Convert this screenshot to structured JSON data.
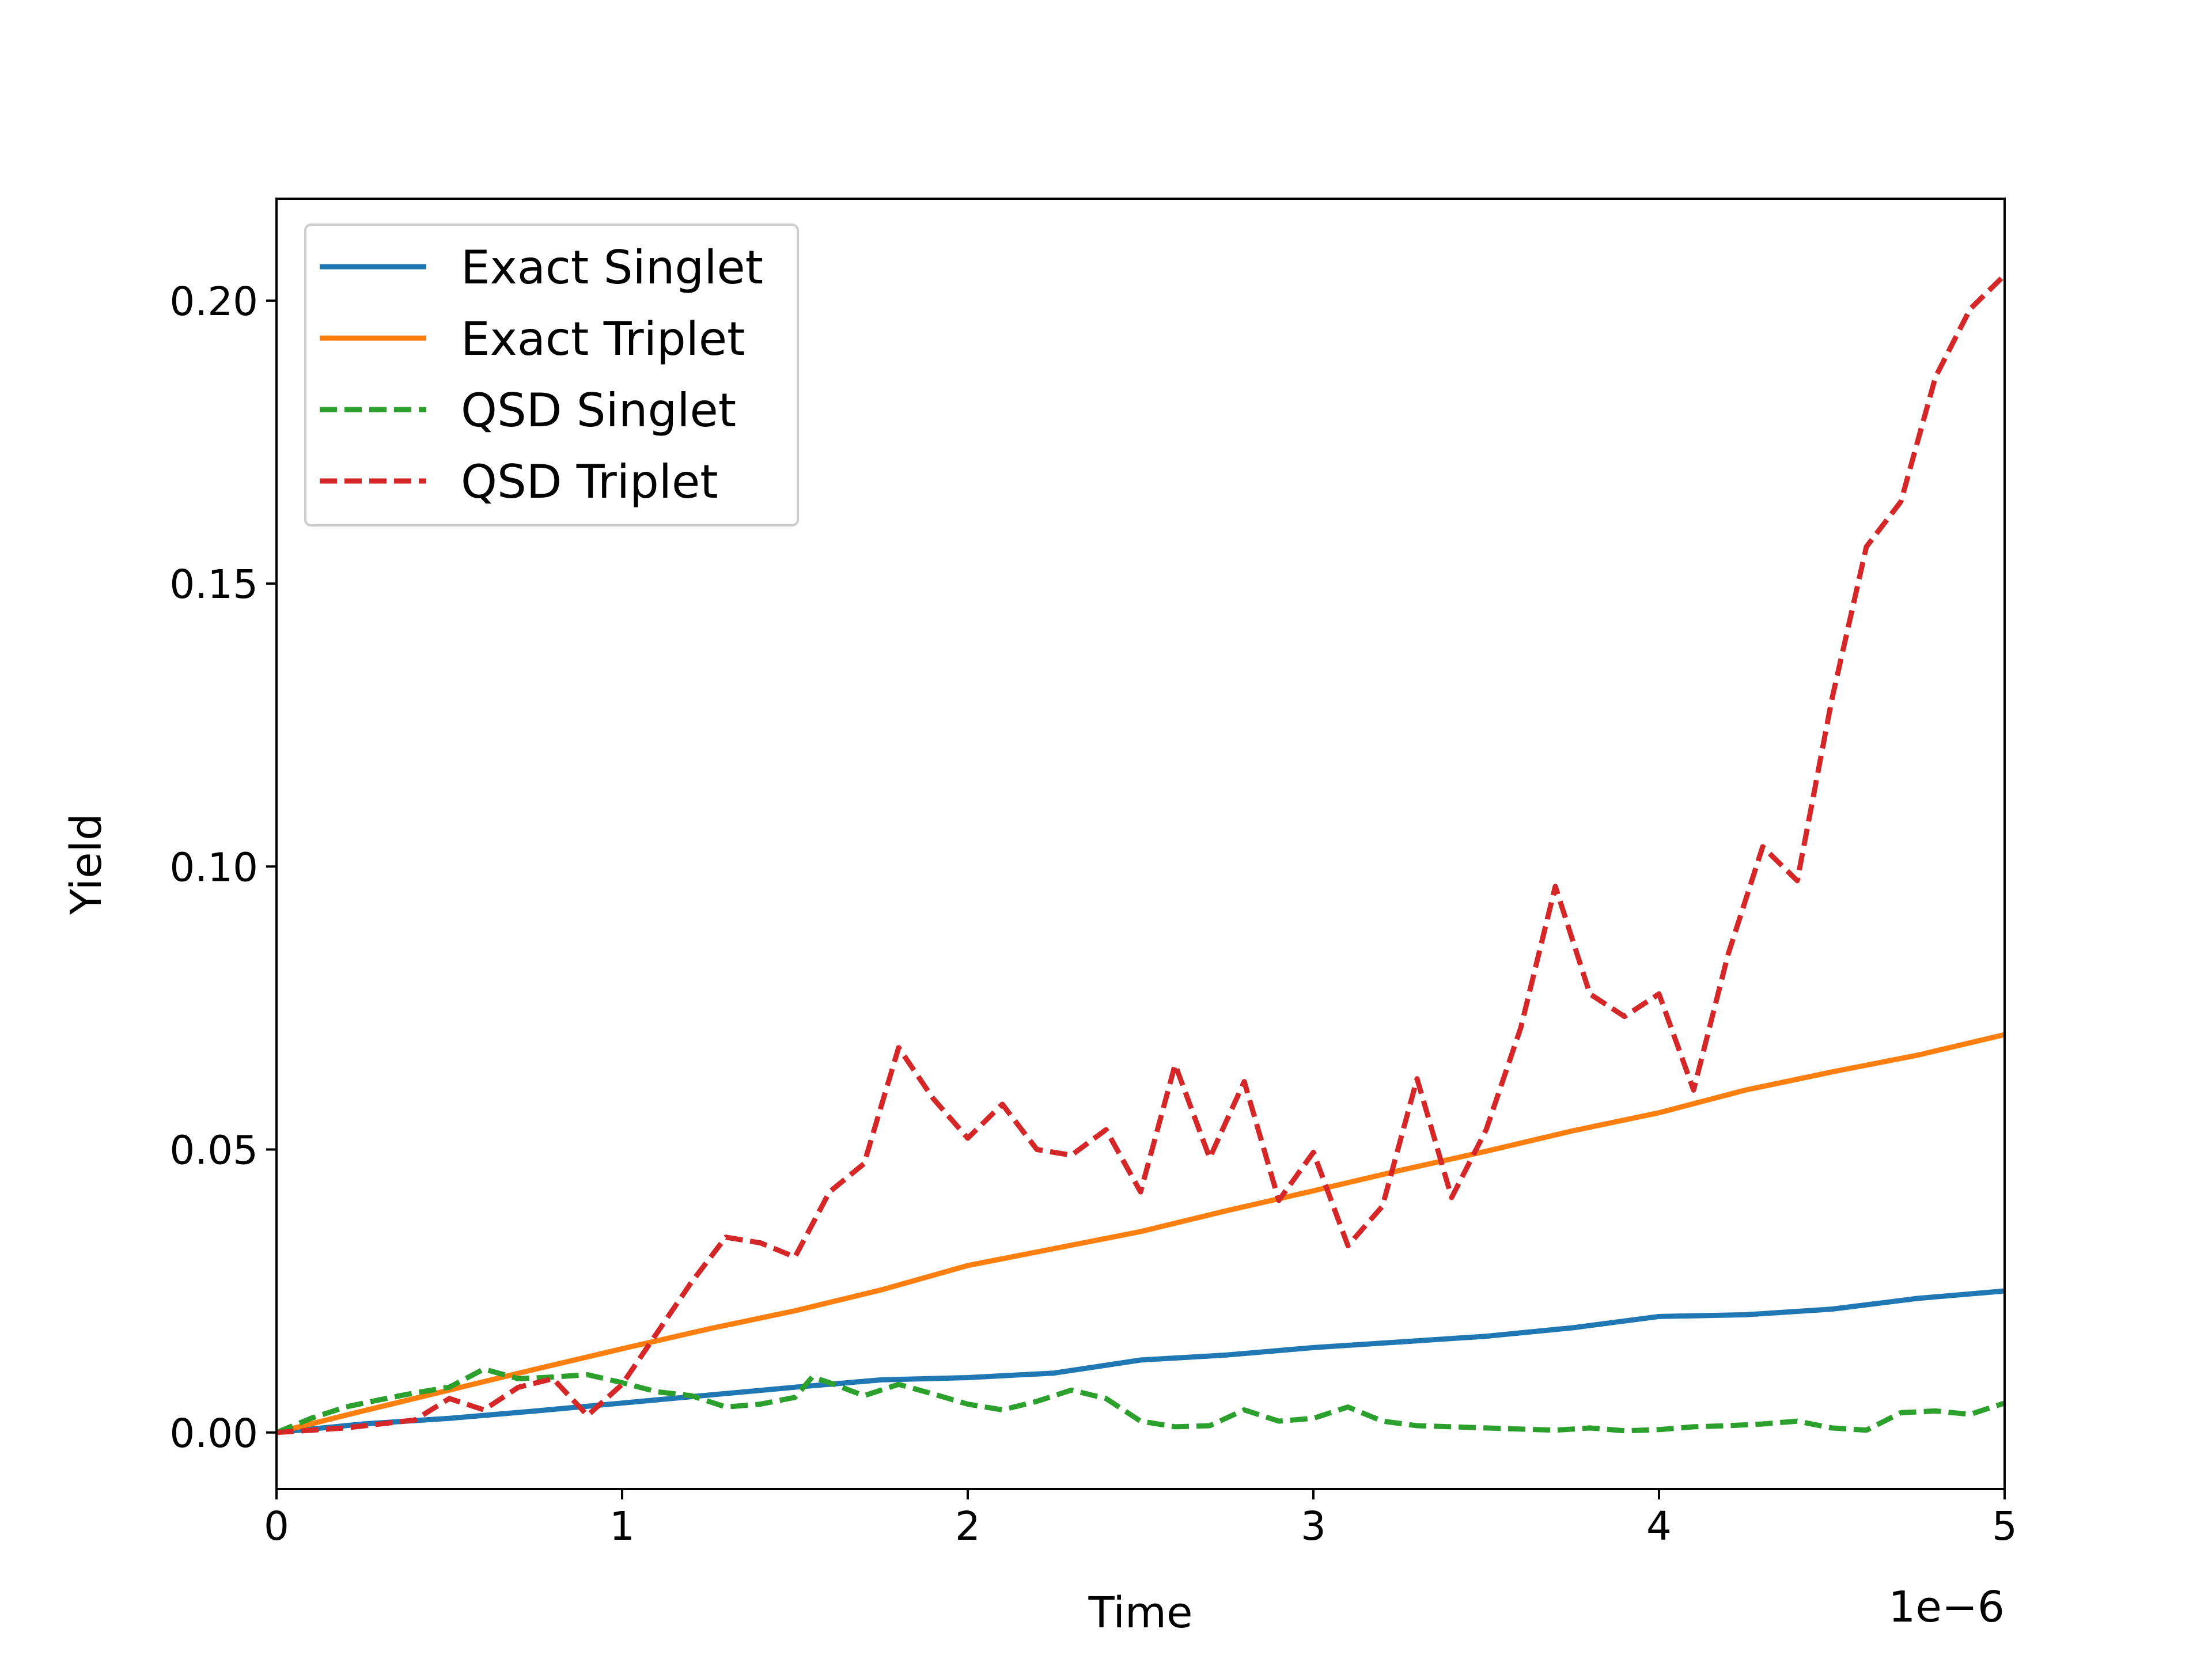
{
  "chart_data": {
    "type": "line",
    "title": "",
    "xlabel": "Time",
    "ylabel": "Yield",
    "x_offset_label": "1e−6",
    "xlim": [
      0,
      5
    ],
    "ylim": [
      -0.01,
      0.218
    ],
    "x_ticks": [
      0,
      1,
      2,
      3,
      4,
      5
    ],
    "x_tick_labels": [
      "0",
      "1",
      "2",
      "3",
      "4",
      "5"
    ],
    "y_ticks": [
      0.0,
      0.05,
      0.1,
      0.15,
      0.2
    ],
    "y_tick_labels": [
      "0.00",
      "0.05",
      "0.10",
      "0.15",
      "0.20"
    ],
    "grid": false,
    "legend_position": "upper-left",
    "series": [
      {
        "name": "Exact Singlet",
        "color": "#1f77b4",
        "dash": "solid",
        "x": [
          0,
          0.25,
          0.5,
          0.75,
          1,
          1.25,
          1.5,
          1.75,
          2,
          2.25,
          2.5,
          2.75,
          3,
          3.25,
          3.5,
          3.75,
          4,
          4.25,
          4.5,
          4.75,
          5
        ],
        "y": [
          0,
          0.0015,
          0.0025,
          0.0038,
          0.0052,
          0.0066,
          0.008,
          0.0093,
          0.0097,
          0.0105,
          0.0128,
          0.0137,
          0.015,
          0.016,
          0.017,
          0.0185,
          0.0205,
          0.0208,
          0.0218,
          0.0237,
          0.025
        ]
      },
      {
        "name": "Exact Triplet",
        "color": "#ff7f0e",
        "dash": "solid",
        "x": [
          0,
          0.25,
          0.5,
          0.75,
          1,
          1.25,
          1.5,
          1.75,
          2,
          2.25,
          2.5,
          2.75,
          3,
          3.25,
          3.5,
          3.75,
          4,
          4.25,
          4.5,
          4.75,
          5
        ],
        "y": [
          0,
          0.0038,
          0.0075,
          0.0112,
          0.0148,
          0.0183,
          0.0215,
          0.0252,
          0.0295,
          0.0325,
          0.0355,
          0.0392,
          0.0427,
          0.0463,
          0.0497,
          0.0533,
          0.0565,
          0.0605,
          0.0637,
          0.0667,
          0.0703
        ]
      },
      {
        "name": "QSD Singlet",
        "color": "#2ca02c",
        "dash": "dashed",
        "x": [
          0,
          0.1,
          0.2,
          0.3,
          0.4,
          0.5,
          0.6,
          0.7,
          0.8,
          0.9,
          1.0,
          1.1,
          1.2,
          1.3,
          1.4,
          1.5,
          1.55,
          1.6,
          1.7,
          1.8,
          1.9,
          2.0,
          2.1,
          2.2,
          2.3,
          2.4,
          2.5,
          2.6,
          2.7,
          2.8,
          2.9,
          3.0,
          3.1,
          3.2,
          3.3,
          3.4,
          3.5,
          3.6,
          3.7,
          3.8,
          3.9,
          4.0,
          4.1,
          4.2,
          4.3,
          4.4,
          4.5,
          4.6,
          4.7,
          4.8,
          4.9,
          5.0
        ],
        "y": [
          0,
          0.0025,
          0.0045,
          0.0058,
          0.007,
          0.008,
          0.0112,
          0.0095,
          0.0098,
          0.0102,
          0.0088,
          0.0072,
          0.0065,
          0.0045,
          0.005,
          0.0062,
          0.0098,
          0.0088,
          0.0065,
          0.0085,
          0.0068,
          0.005,
          0.004,
          0.0055,
          0.0075,
          0.006,
          0.002,
          0.001,
          0.0012,
          0.004,
          0.002,
          0.0025,
          0.0045,
          0.002,
          0.0012,
          0.001,
          0.0008,
          0.0006,
          0.0004,
          0.0008,
          0.0003,
          0.0005,
          0.001,
          0.0012,
          0.0015,
          0.002,
          0.0008,
          0.0004,
          0.0035,
          0.0038,
          0.0032,
          0.0052
        ]
      },
      {
        "name": "QSD Triplet",
        "color": "#d62728",
        "dash": "dashed",
        "x": [
          0,
          0.2,
          0.4,
          0.5,
          0.6,
          0.7,
          0.8,
          0.9,
          1.0,
          1.1,
          1.2,
          1.3,
          1.4,
          1.5,
          1.6,
          1.7,
          1.8,
          1.9,
          2.0,
          2.1,
          2.2,
          2.3,
          2.4,
          2.5,
          2.6,
          2.7,
          2.8,
          2.9,
          3.0,
          3.1,
          3.2,
          3.3,
          3.4,
          3.5,
          3.6,
          3.7,
          3.8,
          3.9,
          4.0,
          4.1,
          4.2,
          4.3,
          4.4,
          4.5,
          4.6,
          4.7,
          4.8,
          4.9,
          5.0
        ],
        "y": [
          0,
          0.0008,
          0.0022,
          0.006,
          0.004,
          0.008,
          0.0095,
          0.003,
          0.0085,
          0.0175,
          0.0265,
          0.0345,
          0.0335,
          0.031,
          0.0425,
          0.0475,
          0.068,
          0.059,
          0.052,
          0.058,
          0.05,
          0.049,
          0.0535,
          0.0425,
          0.065,
          0.0485,
          0.062,
          0.041,
          0.0495,
          0.033,
          0.04,
          0.0625,
          0.0415,
          0.0535,
          0.0715,
          0.0965,
          0.0775,
          0.0735,
          0.0775,
          0.0605,
          0.0845,
          0.1035,
          0.0975,
          0.1295,
          0.1565,
          0.1645,
          0.1865,
          0.1985,
          0.2045
        ]
      }
    ]
  }
}
